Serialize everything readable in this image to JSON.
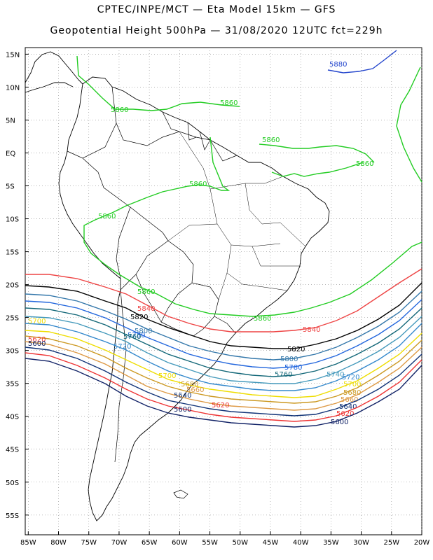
{
  "header": {
    "line1": "CPTEC/INPE/MCT —  Eta Model 15km — GFS",
    "line2": "Geopotential Height 500hPa — 31/08/2020 12UTC fct=229h"
  },
  "map": {
    "lat_labels": [
      "15N",
      "10N",
      "5N",
      "EQ",
      "5S",
      "10S",
      "15S",
      "20S",
      "25S",
      "30S",
      "35S",
      "40S",
      "45S",
      "50S",
      "55S"
    ],
    "lon_labels": [
      "85W",
      "80W",
      "75W",
      "70W",
      "65W",
      "60W",
      "55W",
      "50W",
      "45W",
      "40W",
      "35W",
      "30W",
      "25W",
      "20W"
    ],
    "extent": {
      "lon": [
        -85.5,
        -20
      ],
      "lat": [
        -58,
        16
      ]
    }
  },
  "contours": [
    {
      "value": "5880",
      "color": "#2244cc"
    },
    {
      "value": "5860",
      "color": "#22cc22"
    },
    {
      "value": "5840",
      "color": "#ee4444"
    },
    {
      "value": "5820",
      "color": "#000000"
    },
    {
      "value": "5800",
      "color": "#3377aa"
    },
    {
      "value": "5780",
      "color": "#2266dd"
    },
    {
      "value": "5760",
      "color": "#116677"
    },
    {
      "value": "5740",
      "color": "#4499bb"
    },
    {
      "value": "5720",
      "color": "#3388cc"
    },
    {
      "value": "5700",
      "color": "#eedd00"
    },
    {
      "value": "5680",
      "color": "#cc9922"
    },
    {
      "value": "5660",
      "color": "#dd9944"
    },
    {
      "value": "5640",
      "color": "#113377"
    },
    {
      "value": "5620",
      "color": "#ee3333"
    },
    {
      "value": "5600",
      "color": "#112266"
    }
  ]
}
